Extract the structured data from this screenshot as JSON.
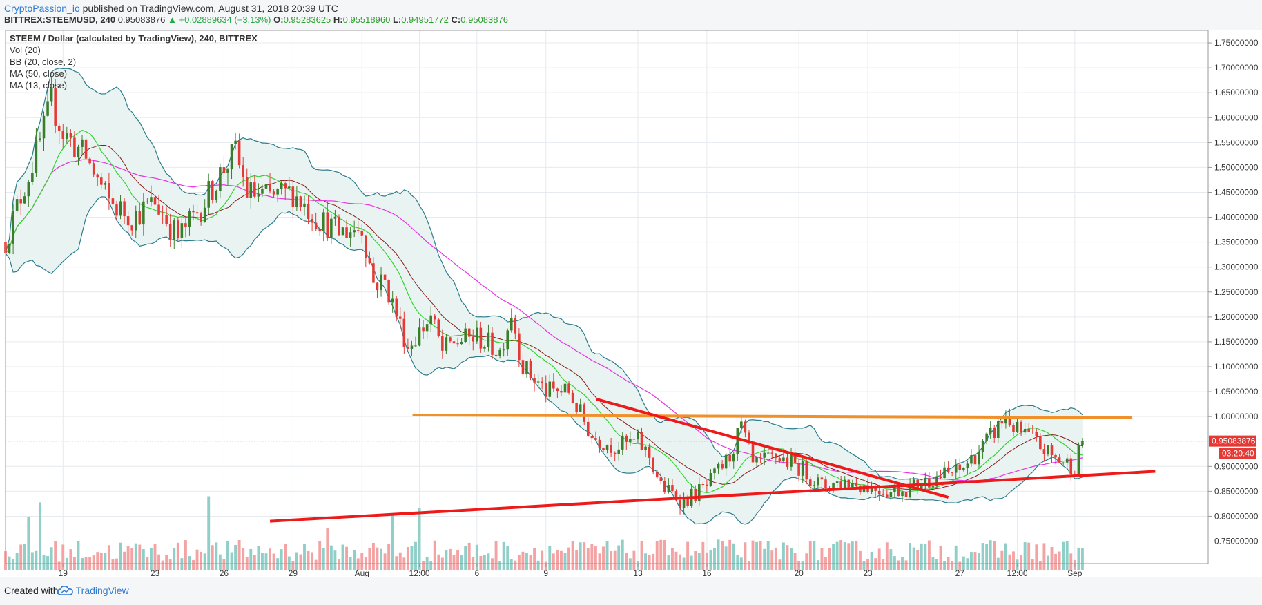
{
  "header": {
    "author": "CryptoPassion_io",
    "published": "published on TradingView.com, August 31, 2018 20:39 UTC",
    "symbol": "BITTREX:STEEMUSD, 240",
    "price": "0.95083876",
    "change": "▲ +0.02889634 (+3.13%)",
    "o_label": "O:",
    "o": "0.95283625",
    "h_label": "H:",
    "h": "0.95518960",
    "l_label": "L:",
    "l": "0.94951772",
    "c_label": "C:",
    "c": "0.95083876"
  },
  "footer": {
    "created_with": "Created with",
    "brand": "TradingView"
  },
  "colors": {
    "up": "#3a7d2a",
    "down": "#e53935",
    "vol_up": "#8fcfc8",
    "vol_down": "#f3a3a3",
    "ma50": "#e832e3",
    "ma13": "#32d22e",
    "bb_basis": "#8b1a1a",
    "bb_band": "#2a7c8c",
    "bb_fill": "#e9f4f2",
    "resistance": "#f0902a",
    "trend": "#ee1a1a",
    "price_line": "#e53935",
    "grid": "#e6eaee"
  },
  "chart_data": {
    "type": "candlestick",
    "title": "STEEM / Dollar (calculated by TradingView), 240, BITTREX",
    "legend": [
      "Vol (20)",
      "BB (20, close, 2)",
      "MA (50, close)",
      "MA (13, close)"
    ],
    "y_ticks": [
      "1.75000000",
      "1.70000000",
      "1.65000000",
      "1.60000000",
      "1.55000000",
      "1.50000000",
      "1.45000000",
      "1.40000000",
      "1.35000000",
      "1.30000000",
      "1.25000000",
      "1.20000000",
      "1.15000000",
      "1.10000000",
      "1.05000000",
      "1.00000000",
      "0.95083876",
      "0.90000000",
      "0.85000000",
      "0.80000000",
      "0.75000000"
    ],
    "ylim": [
      0.705,
      1.775
    ],
    "x_ticks": [
      "19",
      "23",
      "26",
      "29",
      "Aug",
      "12:00",
      "6",
      "9",
      "13",
      "16",
      "20",
      "23",
      "27",
      "12:00",
      "Sep"
    ],
    "x_days": [
      0,
      4,
      7,
      10,
      13,
      15.5,
      18,
      21,
      25,
      28,
      32,
      35,
      39,
      41.5,
      44
    ],
    "xlim": [
      -2.5,
      49.8
    ],
    "price_label": "0.95083876",
    "timer_label": "03:20:40",
    "last_price": 0.95083876,
    "anchors": [
      [
        -2.5,
        1.35
      ],
      [
        -2,
        1.42
      ],
      [
        -1,
        1.55
      ],
      [
        -0.5,
        1.63
      ],
      [
        0,
        1.57
      ],
      [
        1,
        1.52
      ],
      [
        2,
        1.43
      ],
      [
        3,
        1.4
      ],
      [
        4,
        1.43
      ],
      [
        5,
        1.36
      ],
      [
        6,
        1.42
      ],
      [
        7,
        1.5
      ],
      [
        7.5,
        1.53
      ],
      [
        8,
        1.45
      ],
      [
        9,
        1.44
      ],
      [
        10,
        1.45
      ],
      [
        11,
        1.4
      ],
      [
        12,
        1.37
      ],
      [
        13,
        1.38
      ],
      [
        13.5,
        1.27
      ],
      [
        14,
        1.27
      ],
      [
        15,
        1.14
      ],
      [
        16,
        1.2
      ],
      [
        16.5,
        1.13
      ],
      [
        17,
        1.15
      ],
      [
        18,
        1.16
      ],
      [
        19,
        1.13
      ],
      [
        19.5,
        1.21
      ],
      [
        20,
        1.1
      ],
      [
        21,
        1.05
      ],
      [
        22,
        1.05
      ],
      [
        23,
        0.96
      ],
      [
        24,
        0.94
      ],
      [
        25,
        0.95
      ],
      [
        25.5,
        0.92
      ],
      [
        26,
        0.86
      ],
      [
        27,
        0.83
      ],
      [
        28,
        0.86
      ],
      [
        29,
        0.92
      ],
      [
        29.5,
        0.98
      ],
      [
        30,
        0.9
      ],
      [
        31,
        0.92
      ],
      [
        32,
        0.9
      ],
      [
        33,
        0.86
      ],
      [
        34,
        0.87
      ],
      [
        35,
        0.86
      ],
      [
        36,
        0.85
      ],
      [
        37,
        0.86
      ],
      [
        38,
        0.88
      ],
      [
        39,
        0.89
      ],
      [
        40,
        0.94
      ],
      [
        41,
        1.0
      ],
      [
        41.5,
        0.97
      ],
      [
        42,
        0.96
      ],
      [
        43,
        0.92
      ],
      [
        44,
        0.9
      ],
      [
        44.3,
        0.95
      ]
    ],
    "seed": 12345,
    "volume_spikes": [
      [
        -1.5,
        3.5
      ],
      [
        -1,
        4.5
      ],
      [
        6.3,
        5.0
      ],
      [
        11.5,
        3.0
      ],
      [
        14.3,
        3.5
      ],
      [
        15.5,
        4.0
      ],
      [
        26.5,
        1.4
      ],
      [
        28.5,
        1.5
      ]
    ],
    "resistance_line": {
      "x1": 15.2,
      "y1": 1.003,
      "x2": 46.5,
      "y2": 0.998
    },
    "trend_upper": {
      "x1": 23.2,
      "y1": 1.035,
      "x2": 38.5,
      "y2": 0.838
    },
    "trend_lower": {
      "x1": 9,
      "y1": 0.79,
      "x2": 47.5,
      "y2": 0.89
    }
  }
}
